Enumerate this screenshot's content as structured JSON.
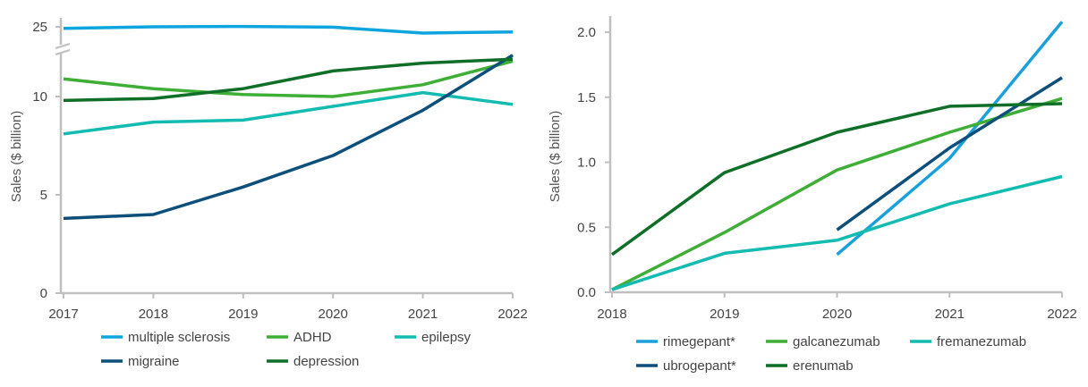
{
  "chart_data": [
    {
      "type": "line",
      "title": "",
      "xlabel": "",
      "ylabel": "Sales ($ billion)",
      "x": [
        2017,
        2018,
        2019,
        2020,
        2021,
        2022
      ],
      "x_ticks": [
        "2017",
        "2018",
        "2019",
        "2020",
        "2021",
        "2022"
      ],
      "y_ticks": [
        "0",
        "5",
        "10",
        "25"
      ],
      "ylim": [
        0,
        25
      ],
      "axis_break": {
        "between": [
          12.5,
          23.5
        ]
      },
      "grid": false,
      "legend_position": "bottom",
      "series": [
        {
          "name": "multiple sclerosis",
          "color": "#0ea5df",
          "values": [
            24.6,
            25.0,
            25.1,
            24.9,
            23.4,
            23.7
          ]
        },
        {
          "name": "ADHD",
          "color": "#3fae37",
          "values": [
            10.9,
            10.4,
            10.1,
            10.0,
            10.6,
            11.8
          ]
        },
        {
          "name": "epilepsy",
          "color": "#13bbb0",
          "values": [
            8.1,
            8.7,
            8.8,
            9.5,
            10.2,
            9.6
          ]
        },
        {
          "name": "migraine",
          "color": "#0d4f7a",
          "values": [
            3.8,
            4.0,
            5.4,
            7.0,
            9.3,
            12.1
          ]
        },
        {
          "name": "depression",
          "color": "#0f6e27",
          "values": [
            9.8,
            9.9,
            10.4,
            11.3,
            11.7,
            11.9
          ]
        }
      ]
    },
    {
      "type": "line",
      "title": "",
      "xlabel": "",
      "ylabel": "Sales ($ billion)",
      "x": [
        2018,
        2019,
        2020,
        2021,
        2022
      ],
      "x_ticks": [
        "2018",
        "2019",
        "2020",
        "2021",
        "2022"
      ],
      "y_ticks": [
        "0.0",
        "0.5",
        "1.0",
        "1.5",
        "2.0"
      ],
      "ylim": [
        0,
        2.1
      ],
      "grid": false,
      "legend_position": "bottom",
      "series": [
        {
          "name": "rimegepant*",
          "color": "#1aa1dc",
          "values": [
            null,
            null,
            0.29,
            1.03,
            2.08
          ]
        },
        {
          "name": "galcanezumab",
          "color": "#3fae37",
          "values": [
            0.02,
            0.46,
            0.94,
            1.23,
            1.49
          ]
        },
        {
          "name": "fremanezumab",
          "color": "#13bbb0",
          "values": [
            0.02,
            0.3,
            0.4,
            0.68,
            0.89
          ]
        },
        {
          "name": "ubrogepant*",
          "color": "#0d4f7a",
          "values": [
            null,
            null,
            0.48,
            1.11,
            1.65
          ]
        },
        {
          "name": "erenumab",
          "color": "#0f6e27",
          "values": [
            0.29,
            0.92,
            1.23,
            1.43,
            1.45
          ]
        }
      ]
    }
  ]
}
